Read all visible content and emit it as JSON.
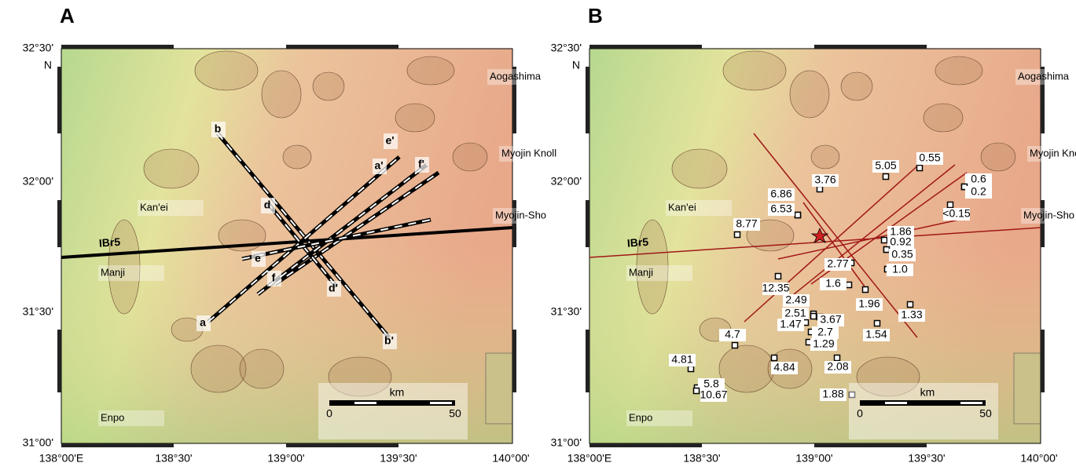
{
  "axes": {
    "lat_ticks": [
      "32°30'",
      "32°00'",
      "31°30'",
      "31°00'"
    ],
    "lat_unit": "N",
    "lon_ticks": [
      "138°00'E",
      "138°30'",
      "139°00'",
      "139°30'",
      "140°00'"
    ]
  },
  "panels": [
    {
      "label": "A",
      "places": [
        "Aogashima",
        "Myojin Knoll",
        "Kan'ei",
        "Myojin-Sho",
        "Manji",
        "Enpo"
      ],
      "line_label": "IBr5",
      "profiles": [
        "b",
        "b'",
        "a",
        "a'",
        "e'",
        "f'",
        "d",
        "d'",
        "e",
        "f"
      ],
      "scale": {
        "title": "km",
        "start": "0",
        "end": "50"
      }
    },
    {
      "label": "B",
      "places": [
        "Aogashima",
        "Myojin Knoll",
        "Kan'ei",
        "Myojin-Sho",
        "Manji",
        "Enpo"
      ],
      "line_label": "IBr5",
      "stations": [
        "3.76",
        "5.05",
        "0.55",
        "0.6",
        "0.2",
        "<0.15",
        "6.86",
        "6.53",
        "8.77",
        "1.86",
        "0.92",
        "0.35",
        "2.77",
        "1.0",
        "12.35",
        "1.6",
        "1.96",
        "2.49",
        "1.33",
        "2.51",
        "3.67",
        "1.47",
        "2.7",
        "1.29",
        "1.54",
        "4.7",
        "4.84",
        "2.08",
        "4.81",
        "5.8",
        "10.67",
        "1.88"
      ],
      "scale": {
        "title": "km",
        "start": "0",
        "end": "50"
      }
    }
  ]
}
